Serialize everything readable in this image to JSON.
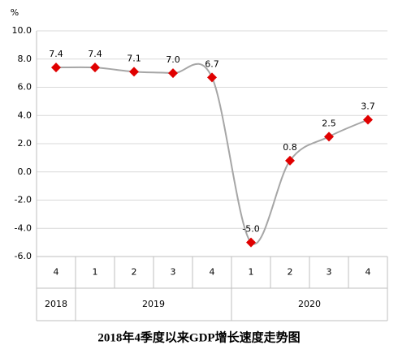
{
  "chart_data": {
    "type": "line",
    "title": "2018年4季度以来GDP增长速度走势图",
    "y_unit": "%",
    "categories": [
      "4",
      "1",
      "2",
      "3",
      "4",
      "1",
      "2",
      "3",
      "4"
    ],
    "groups": [
      {
        "label": "2018",
        "count": 1
      },
      {
        "label": "2019",
        "count": 4
      },
      {
        "label": "2020",
        "count": 4
      }
    ],
    "series": [
      {
        "name": "GDP",
        "color": "#a6a6a6",
        "marker_color": "#e00000",
        "values": [
          7.4,
          7.4,
          7.1,
          7.0,
          6.7,
          -5.0,
          0.8,
          2.5,
          3.7
        ],
        "value_labels": [
          "7.4",
          "7.4",
          "7.1",
          "7.0",
          "6.7",
          "-5.0",
          "0.8",
          "2.5",
          "3.7"
        ]
      }
    ],
    "ylim": [
      -6,
      10
    ],
    "yticks": [
      {
        "value": -6,
        "label": "-6.0"
      },
      {
        "value": -4,
        "label": "-4.0"
      },
      {
        "value": -2,
        "label": "-2.0"
      },
      {
        "value": 0,
        "label": "0.0"
      },
      {
        "value": 2,
        "label": "2.0"
      },
      {
        "value": 4,
        "label": "4.0"
      },
      {
        "value": 6,
        "label": "6.0"
      },
      {
        "value": 8,
        "label": "8.0"
      },
      {
        "value": 10,
        "label": "10.0"
      }
    ],
    "grid": true
  }
}
